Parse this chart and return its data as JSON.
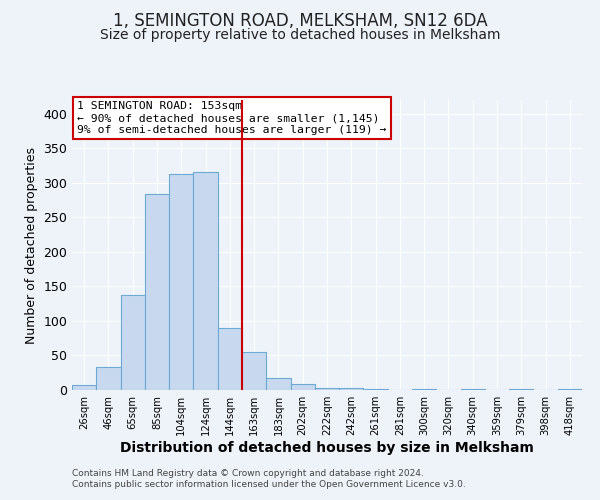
{
  "title": "1, SEMINGTON ROAD, MELKSHAM, SN12 6DA",
  "subtitle": "Size of property relative to detached houses in Melksham",
  "xlabel": "Distribution of detached houses by size in Melksham",
  "ylabel": "Number of detached properties",
  "footer_line1": "Contains HM Land Registry data © Crown copyright and database right 2024.",
  "footer_line2": "Contains public sector information licensed under the Open Government Licence v3.0.",
  "bin_labels": [
    "26sqm",
    "46sqm",
    "65sqm",
    "85sqm",
    "104sqm",
    "124sqm",
    "144sqm",
    "163sqm",
    "183sqm",
    "202sqm",
    "222sqm",
    "242sqm",
    "261sqm",
    "281sqm",
    "300sqm",
    "320sqm",
    "340sqm",
    "359sqm",
    "379sqm",
    "398sqm",
    "418sqm"
  ],
  "bar_heights": [
    7,
    34,
    138,
    284,
    313,
    316,
    90,
    55,
    18,
    9,
    3,
    3,
    1,
    0,
    2,
    0,
    1,
    0,
    1,
    0,
    2
  ],
  "bar_color": "#c8d9ef",
  "bar_edge_color": "#6aaad4",
  "ylim": [
    0,
    420
  ],
  "yticks": [
    0,
    50,
    100,
    150,
    200,
    250,
    300,
    350,
    400
  ],
  "vline_x_idx": 6.5,
  "vline_color": "#cc0000",
  "annotation_title": "1 SEMINGTON ROAD: 153sqm",
  "annotation_line1": "← 90% of detached houses are smaller (1,145)",
  "annotation_line2": "9% of semi-detached houses are larger (119) →",
  "annotation_box_color": "#ffffff",
  "annotation_box_edge_color": "#cc0000",
  "background_color": "#eef2f9",
  "grid_color": "#ffffff",
  "title_fontsize": 12,
  "subtitle_fontsize": 10,
  "ylabel_fontsize": 9,
  "xlabel_fontsize": 10
}
